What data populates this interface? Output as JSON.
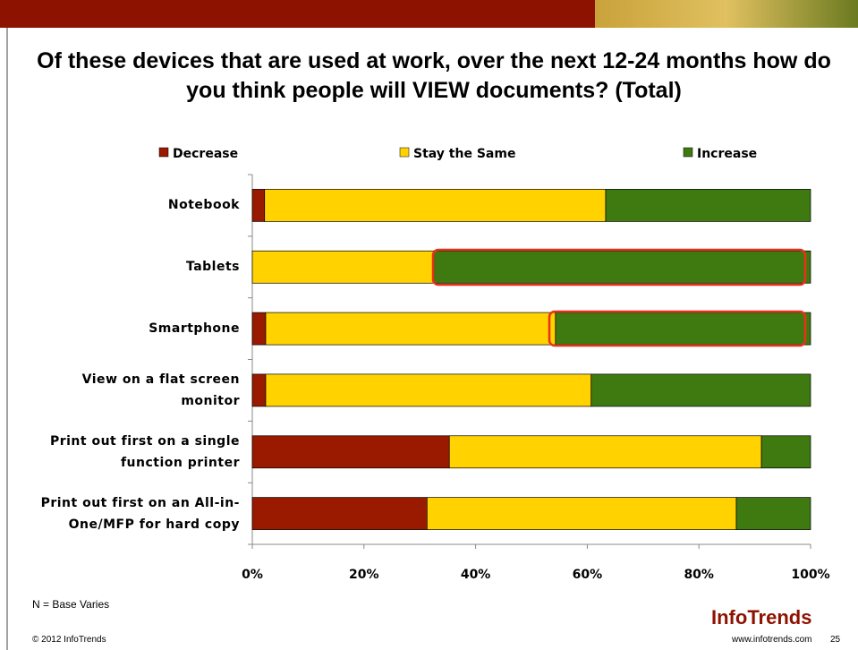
{
  "chart_data": {
    "type": "stacked_barh",
    "title": "Of these devices that are used at work, over the next 12-24 months how do you think people will VIEW documents? (Total)",
    "categories": [
      "Notebook",
      "Tablets",
      "Smartphone",
      "View on a flat screen monitor",
      "Print out first on a single function printer",
      "Print out first on an All-in-One/MFP for hard copy"
    ],
    "series": [
      {
        "name": "Decrease",
        "color": "#9a1a00",
        "values": [
          2.2,
          0,
          2.4,
          2.4,
          35.3,
          31.3
        ]
      },
      {
        "name": "Stay the Same",
        "color": "#ffd200",
        "values": [
          61.1,
          32.5,
          51.9,
          58.3,
          55.9,
          55.4
        ]
      },
      {
        "name": "Increase",
        "color": "#3f7a10",
        "values": [
          36.7,
          67.5,
          45.7,
          39.3,
          8.8,
          13.3
        ]
      }
    ],
    "xlim": [
      0,
      100
    ],
    "xticks": [
      {
        "value": 0,
        "label": "0%"
      },
      {
        "value": 20,
        "label": "20%"
      },
      {
        "value": 40,
        "label": "40%"
      },
      {
        "value": 60,
        "label": "60%"
      },
      {
        "value": 80,
        "label": "80%"
      },
      {
        "value": 100,
        "label": "100%"
      }
    ],
    "legend": "top"
  },
  "footer": {
    "note": "N = Base Varies",
    "copyright": "© 2012 InfoTrends",
    "url": "www.infotrends.com",
    "page": "25",
    "logo": "InfoTrends"
  }
}
